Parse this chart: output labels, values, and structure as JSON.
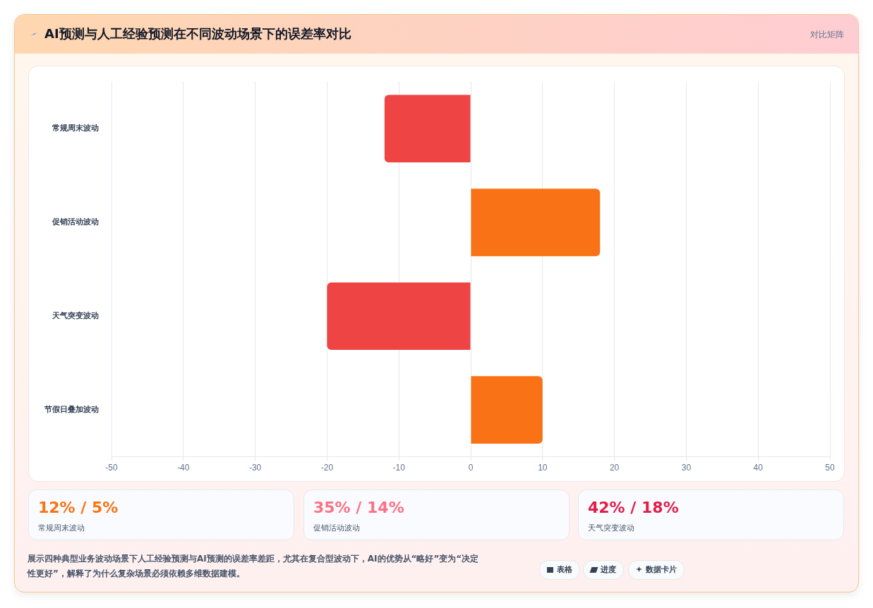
{
  "chart_data": {
    "type": "bar",
    "orientation": "horizontal",
    "title": "AI预测与人工经验预测在不同波动场景下的误差率对比",
    "categories": [
      "常规周末波动",
      "促销活动波动",
      "天气突变波动",
      "节假日叠加波动"
    ],
    "values": [
      -12,
      18,
      -20,
      10
    ],
    "colors": [
      "#ef4444",
      "#f97316",
      "#ef4444",
      "#f97316"
    ],
    "xlim": [
      -50,
      50
    ],
    "xticks": [
      -50,
      -40,
      -30,
      -20,
      -10,
      0,
      10,
      20,
      30,
      40,
      50
    ],
    "grid": "x",
    "legend": false,
    "annotations": [
      "对比矩阵",
      "12% / 5%",
      "常规周末波动",
      "35% / 14%",
      "促销活动波动",
      "42% / 18%",
      "天气突变波动",
      "展示四种典型业务波动场景下人工经验预测与AI预测的误差率差距，尤其在复合型波动下，AI的优势从“略好”变为“决定性更好”，解释了为什么复杂场景必须依赖多维数据建模。",
      "表格",
      "进度",
      "数据卡片"
    ]
  }
}
